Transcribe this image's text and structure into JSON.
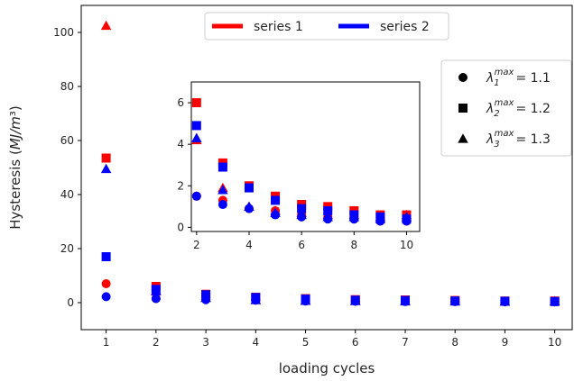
{
  "chart_data": {
    "type": "scatter",
    "xlabel": "loading cycles",
    "ylabel": "Hysteresis (MJ/m³)",
    "xlim": [
      0.5,
      10.35
    ],
    "ylim": [
      -10,
      110
    ],
    "xticks": [
      1,
      2,
      3,
      4,
      5,
      6,
      7,
      8,
      9,
      10
    ],
    "yticks": [
      0,
      20,
      40,
      60,
      80,
      100
    ],
    "grid": false,
    "colors": {
      "series 1": "#ff0000",
      "series 2": "#0000ff",
      "marker_legend": "#000000"
    },
    "legend_colors": {
      "placement": "top-center",
      "entries": [
        "series 1",
        "series 2"
      ]
    },
    "legend_markers": {
      "placement": "upper-right",
      "entries": [
        {
          "marker": "circle",
          "symbol": "λ",
          "sub": "1",
          "sup": "max",
          "value": "= 1.1"
        },
        {
          "marker": "square",
          "symbol": "λ",
          "sub": "2",
          "sup": "max",
          "value": "= 1.2"
        },
        {
          "marker": "triangle",
          "symbol": "λ",
          "sub": "3",
          "sup": "max",
          "value": "= 1.3"
        }
      ]
    },
    "x": [
      1,
      2,
      3,
      4,
      5,
      6,
      7,
      8,
      9,
      10
    ],
    "series": [
      {
        "name": "series 1",
        "marker": "circle",
        "lambda": 1.1,
        "values": [
          7.0,
          1.5,
          1.3,
          0.9,
          0.8,
          0.6,
          0.5,
          0.4,
          0.3,
          0.3
        ]
      },
      {
        "name": "series 1",
        "marker": "square",
        "lambda": 1.2,
        "values": [
          53.5,
          6.0,
          3.1,
          2.0,
          1.5,
          1.1,
          1.0,
          0.8,
          0.6,
          0.6
        ]
      },
      {
        "name": "series 1",
        "marker": "triangle",
        "lambda": 1.3,
        "values": [
          102.5,
          4.2,
          1.9,
          1.0,
          0.8,
          0.7,
          0.6,
          0.6,
          0.5,
          0.6
        ]
      },
      {
        "name": "series 2",
        "marker": "circle",
        "lambda": 1.1,
        "values": [
          2.2,
          1.5,
          1.1,
          0.9,
          0.6,
          0.5,
          0.4,
          0.4,
          0.3,
          0.3
        ]
      },
      {
        "name": "series 2",
        "marker": "square",
        "lambda": 1.2,
        "values": [
          17.0,
          4.9,
          2.9,
          1.9,
          1.3,
          0.9,
          0.8,
          0.6,
          0.5,
          0.4
        ]
      },
      {
        "name": "series 2",
        "marker": "triangle",
        "lambda": 1.3,
        "values": [
          49.5,
          4.3,
          1.8,
          1.0,
          0.7,
          0.6,
          0.5,
          0.5,
          0.4,
          0.5
        ]
      }
    ],
    "inset": {
      "xlim": [
        1.8,
        10.5
      ],
      "ylim": [
        -0.2,
        7.0
      ],
      "xticks": [
        2,
        4,
        6,
        8,
        10
      ],
      "yticks": [
        0,
        2,
        4,
        6
      ],
      "x_from": 2
    }
  }
}
